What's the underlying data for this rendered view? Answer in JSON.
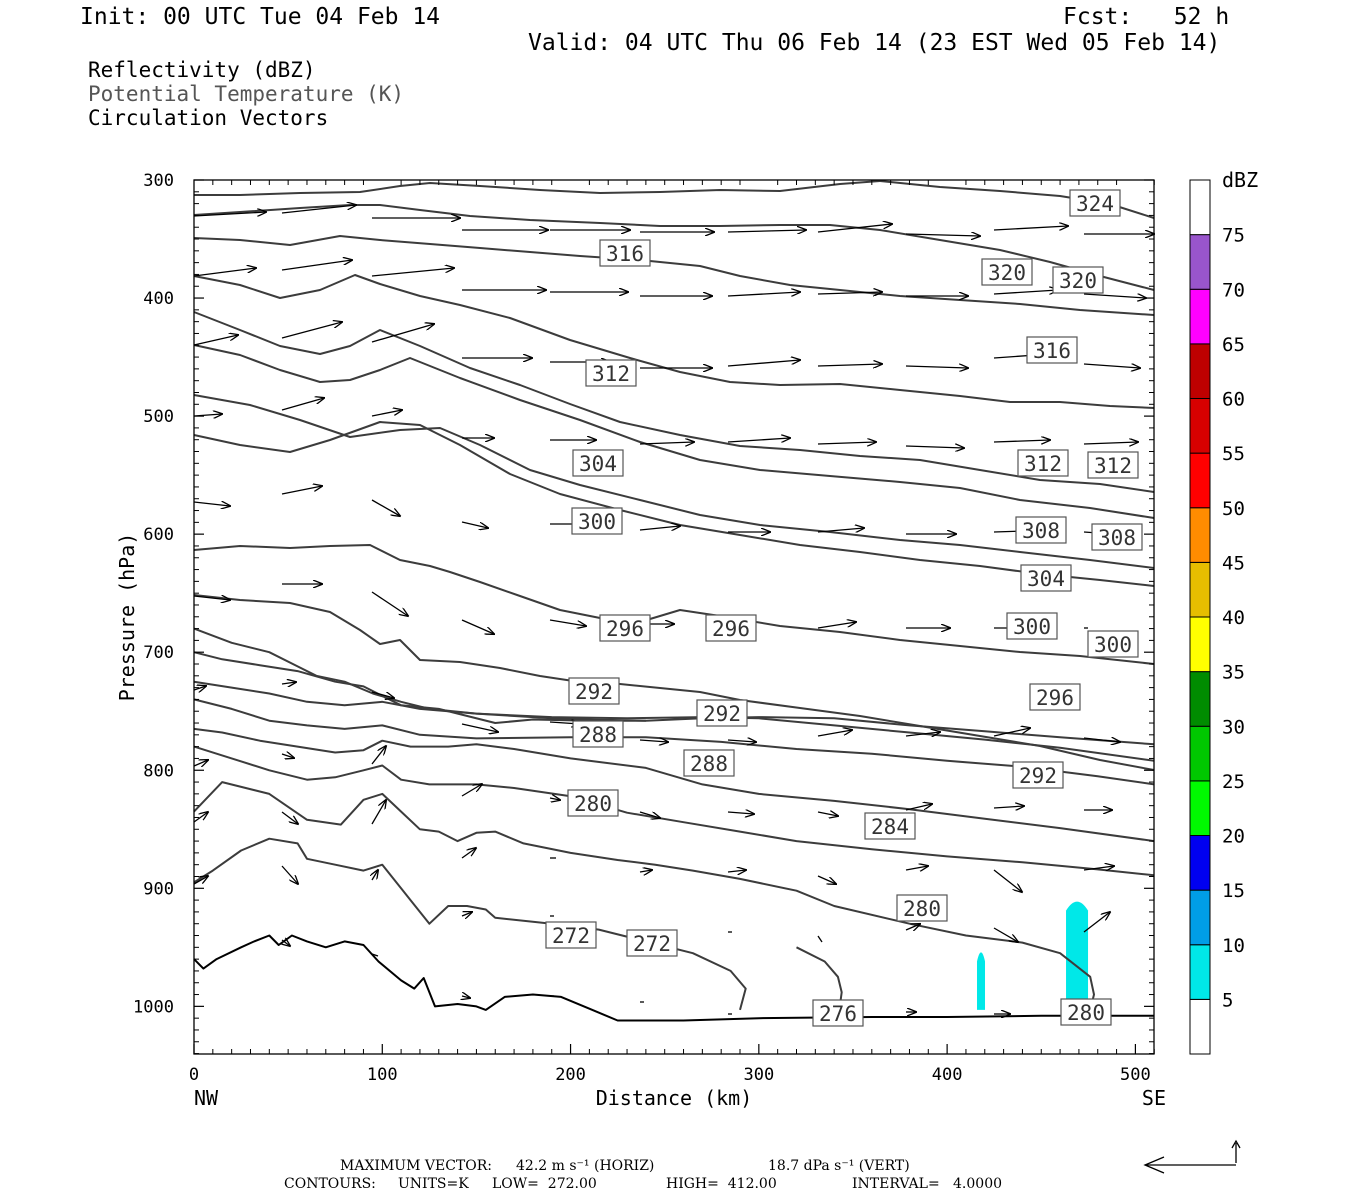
{
  "header": {
    "init": "Init: 00 UTC Tue 04 Feb 14",
    "fcst": "Fcst:   52 h",
    "valid": "Valid: 04 UTC Thu 06 Feb 14 (23 EST Wed 05 Feb 14)"
  },
  "legend_fields": [
    {
      "label": "Reflectivity (dBZ)",
      "color": "#000000"
    },
    {
      "label": "Potential Temperature (K)",
      "color": "#555555"
    },
    {
      "label": "Circulation Vectors",
      "color": "#000000"
    }
  ],
  "chart_data": {
    "type": "contour",
    "xlabel": "Distance (km)",
    "ylabel": "Pressure (hPa)",
    "x_ticks": [
      0,
      100,
      200,
      300,
      400,
      500
    ],
    "y_ticks": [
      300,
      400,
      500,
      600,
      700,
      800,
      900,
      1000
    ],
    "xlim": [
      0,
      510
    ],
    "ylim": [
      300,
      1040
    ],
    "x_end_labels": {
      "left": "NW",
      "right": "SE"
    },
    "theta_contours": [
      {
        "label": "276",
        "points": [
          [
            0,
            960
          ],
          [
            5,
            968
          ],
          [
            12,
            960
          ],
          [
            25,
            950
          ],
          [
            32,
            945
          ],
          [
            40,
            940
          ],
          [
            45,
            948
          ],
          [
            52,
            940
          ],
          [
            60,
            945
          ],
          [
            70,
            950
          ],
          [
            80,
            945
          ],
          [
            90,
            948
          ],
          [
            98,
            962
          ],
          [
            110,
            978
          ],
          [
            117,
            985
          ],
          [
            122,
            976
          ],
          [
            128,
            1000
          ],
          [
            140,
            998
          ],
          [
            150,
            1000
          ],
          [
            155,
            1003
          ],
          [
            165,
            992
          ],
          [
            180,
            990
          ],
          [
            195,
            992
          ],
          [
            210,
            1002
          ],
          [
            225,
            1012
          ],
          [
            260,
            1012
          ],
          [
            300,
            1010
          ],
          [
            360,
            1009
          ],
          [
            400,
            1009
          ],
          [
            450,
            1008
          ],
          [
            510,
            1008
          ]
        ]
      },
      {
        "label": "272",
        "points": [
          [
            0,
            895
          ],
          [
            10,
            885
          ],
          [
            25,
            868
          ],
          [
            40,
            858
          ],
          [
            55,
            862
          ],
          [
            60,
            875
          ],
          [
            75,
            880
          ],
          [
            90,
            885
          ],
          [
            100,
            880
          ],
          [
            115,
            910
          ],
          [
            125,
            930
          ],
          [
            135,
            915
          ],
          [
            145,
            915
          ],
          [
            155,
            918
          ],
          [
            160,
            925
          ],
          [
            190,
            930
          ],
          [
            215,
            935
          ],
          [
            240,
            945
          ],
          [
            265,
            955
          ],
          [
            285,
            970
          ],
          [
            293,
            985
          ],
          [
            290,
            1003
          ]
        ]
      },
      {
        "label": "280",
        "points": [
          [
            0,
            835
          ],
          [
            15,
            810
          ],
          [
            40,
            820
          ],
          [
            60,
            842
          ],
          [
            78,
            846
          ],
          [
            90,
            825
          ],
          [
            100,
            820
          ],
          [
            110,
            835
          ],
          [
            120,
            850
          ],
          [
            130,
            852
          ],
          [
            140,
            860
          ],
          [
            150,
            853
          ],
          [
            160,
            852
          ],
          [
            175,
            862
          ],
          [
            200,
            870
          ],
          [
            225,
            876
          ],
          [
            245,
            880
          ],
          [
            265,
            885
          ],
          [
            290,
            892
          ],
          [
            320,
            902
          ],
          [
            340,
            915
          ],
          [
            380,
            930
          ],
          [
            410,
            940
          ],
          [
            440,
            946
          ],
          [
            460,
            955
          ],
          [
            476,
            975
          ],
          [
            478,
            990
          ],
          [
            476,
            1003
          ]
        ]
      },
      {
        "label": "280b",
        "points": [
          [
            320,
            950
          ],
          [
            335,
            962
          ],
          [
            342,
            975
          ],
          [
            344,
            988
          ],
          [
            343,
            1000
          ]
        ]
      },
      {
        "label": "284",
        "points": [
          [
            0,
            780
          ],
          [
            20,
            790
          ],
          [
            40,
            800
          ],
          [
            60,
            808
          ],
          [
            75,
            806
          ],
          [
            90,
            800
          ],
          [
            100,
            796
          ],
          [
            110,
            808
          ],
          [
            125,
            812
          ],
          [
            150,
            812
          ],
          [
            170,
            815
          ],
          [
            200,
            822
          ],
          [
            230,
            836
          ],
          [
            260,
            844
          ],
          [
            290,
            852
          ],
          [
            320,
            860
          ],
          [
            360,
            867
          ],
          [
            400,
            873
          ],
          [
            440,
            878
          ],
          [
            480,
            884
          ],
          [
            510,
            889
          ]
        ]
      },
      {
        "label": "288",
        "points": [
          [
            0,
            765
          ],
          [
            15,
            768
          ],
          [
            35,
            775
          ],
          [
            55,
            780
          ],
          [
            75,
            785
          ],
          [
            90,
            783
          ],
          [
            100,
            775
          ],
          [
            115,
            780
          ],
          [
            135,
            780
          ],
          [
            150,
            778
          ],
          [
            170,
            782
          ],
          [
            200,
            790
          ],
          [
            240,
            798
          ],
          [
            270,
            812
          ],
          [
            300,
            820
          ],
          [
            340,
            826
          ],
          [
            380,
            833
          ],
          [
            420,
            841
          ],
          [
            460,
            849
          ],
          [
            510,
            860
          ]
        ]
      },
      {
        "label": "292",
        "points": [
          [
            0,
            740
          ],
          [
            20,
            748
          ],
          [
            40,
            758
          ],
          [
            60,
            762
          ],
          [
            80,
            765
          ],
          [
            100,
            762
          ],
          [
            120,
            770
          ],
          [
            150,
            773
          ],
          [
            200,
            772
          ],
          [
            240,
            772
          ],
          [
            280,
            776
          ],
          [
            320,
            782
          ],
          [
            360,
            786
          ],
          [
            400,
            792
          ],
          [
            440,
            797
          ],
          [
            480,
            805
          ],
          [
            510,
            812
          ]
        ]
      },
      {
        "label": "296",
        "points": [
          [
            0,
            725
          ],
          [
            20,
            730
          ],
          [
            40,
            735
          ],
          [
            60,
            742
          ],
          [
            80,
            745
          ],
          [
            100,
            742
          ],
          [
            120,
            748
          ],
          [
            150,
            752
          ],
          [
            190,
            755
          ],
          [
            230,
            756
          ],
          [
            270,
            755
          ],
          [
            300,
            756
          ],
          [
            340,
            762
          ],
          [
            380,
            768
          ],
          [
            420,
            774
          ],
          [
            460,
            781
          ],
          [
            510,
            792
          ]
        ]
      },
      {
        "label": "300",
        "points": [
          [
            0,
            700
          ],
          [
            15,
            706
          ],
          [
            35,
            711
          ],
          [
            55,
            716
          ],
          [
            75,
            725
          ],
          [
            90,
            729
          ],
          [
            110,
            745
          ],
          [
            130,
            748
          ],
          [
            160,
            760
          ],
          [
            180,
            757
          ],
          [
            210,
            758
          ],
          [
            240,
            758
          ],
          [
            270,
            756
          ],
          [
            300,
            755
          ],
          [
            340,
            756
          ],
          [
            380,
            762
          ],
          [
            420,
            767
          ],
          [
            460,
            772
          ],
          [
            510,
            778
          ]
        ]
      },
      {
        "label": "304",
        "points": [
          [
            0,
            680
          ],
          [
            20,
            692
          ],
          [
            40,
            700
          ],
          [
            55,
            712
          ],
          [
            65,
            720
          ],
          [
            80,
            725
          ],
          [
            95,
            735
          ],
          [
            110,
            742
          ],
          [
            125,
            748
          ],
          [
            150,
            752
          ],
          [
            190,
            756
          ],
          [
            210,
            757
          ],
          [
            240,
            758
          ]
        ]
      }
    ],
    "reflectivity_cells": [
      {
        "x": 418,
        "p_top": 950,
        "p_bottom": 1003,
        "dbz": 5
      },
      {
        "x": 469,
        "p_top": 907,
        "p_bottom": 1003,
        "dbz": 5
      }
    ],
    "colorbar": {
      "unit": "dBZ",
      "levels": [
        5,
        10,
        15,
        20,
        25,
        30,
        35,
        40,
        45,
        50,
        55,
        60,
        65,
        70,
        75
      ],
      "colors": [
        "#ffffff",
        "#00e8e8",
        "#009ee6",
        "#0000f0",
        "#00fa00",
        "#00c800",
        "#008c00",
        "#ffff00",
        "#e6be00",
        "#ff8c00",
        "#ff0000",
        "#d70000",
        "#be0000",
        "#ff00ff",
        "#9955cc",
        "#ffffff"
      ]
    }
  },
  "footer": {
    "max_vector_label": "MAXIMUM VECTOR:",
    "horiz": "42.2 m s⁻¹ (HORIZ)",
    "vert": "18.7 dPa s⁻¹ (VERT)",
    "contours_label": "CONTOURS:",
    "units": "UNITS=K",
    "low": "LOW=  272.00",
    "high": "HIGH=  412.00",
    "interval": "INTERVAL=   4.0000"
  }
}
